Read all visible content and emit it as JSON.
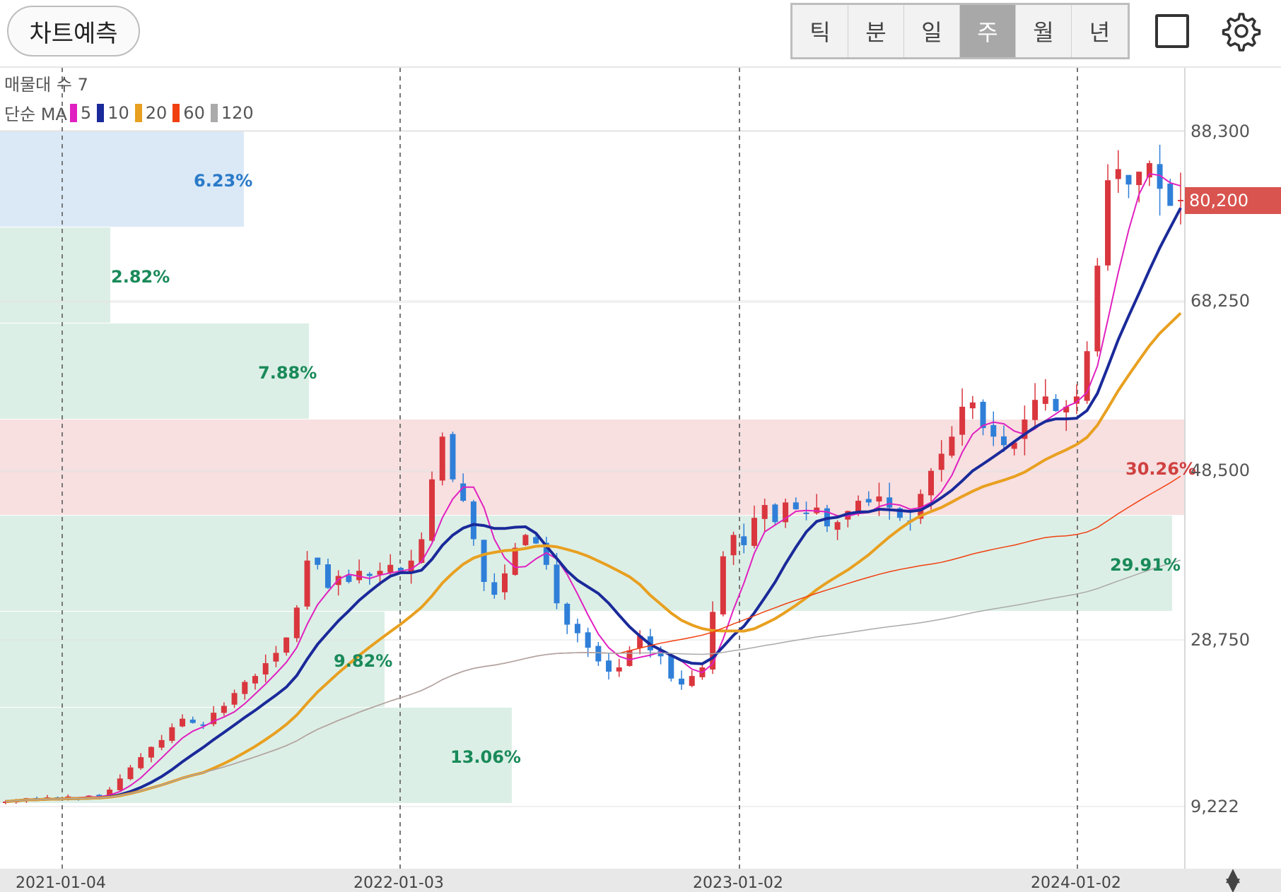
{
  "toolbar": {
    "predict_label": "차트예측",
    "periods": [
      "틱",
      "분",
      "일",
      "주",
      "월",
      "년"
    ],
    "active_period": "주",
    "layout_icon": "square-icon",
    "settings_icon": "gear-icon"
  },
  "legend": {
    "volume_profile": "매물대 수 7",
    "ma_prefix": "단순 MA",
    "ma": [
      {
        "period": "5",
        "color": "#e020c0"
      },
      {
        "period": "10",
        "color": "#1a2a9a"
      },
      {
        "period": "20",
        "color": "#e8a020"
      },
      {
        "period": "60",
        "color": "#f04010"
      },
      {
        "period": "120",
        "color": "#aaaaaa"
      }
    ]
  },
  "price_axis": {
    "labels": [
      "88,300",
      "68,250",
      "48,500",
      "28,750",
      "9,222"
    ],
    "last_price": "80,200"
  },
  "x_axis": {
    "labels": [
      "2021-01-04",
      "2022-01-03",
      "2023-01-02",
      "2024-01-02"
    ]
  },
  "volume_profile": [
    {
      "pct": "6.23%",
      "color": "#dbe9f7",
      "text_color": "#2a7ac8"
    },
    {
      "pct": "2.82%",
      "color": "#dcefe6",
      "text_color": "#1a8a5a"
    },
    {
      "pct": "7.88%",
      "color": "#dcefe6",
      "text_color": "#1a8a5a"
    },
    {
      "pct": "30.26%",
      "color": "#f8dfe0",
      "text_color": "#d04040"
    },
    {
      "pct": "29.91%",
      "color": "#dcefe6",
      "text_color": "#1a8a5a"
    },
    {
      "pct": "9.82%",
      "color": "#dcefe6",
      "text_color": "#1a8a5a"
    },
    {
      "pct": "13.06%",
      "color": "#dcefe6",
      "text_color": "#1a8a5a"
    }
  ],
  "chart_data": {
    "type": "candlestick",
    "ylim": [
      9222,
      88300
    ],
    "series_close_approx": [
      9800,
      10000,
      10200,
      10100,
      10300,
      10200,
      10400,
      10300,
      10500,
      10400,
      11200,
      12500,
      13800,
      15000,
      16200,
      17000,
      18500,
      19500,
      19000,
      18800,
      20200,
      21000,
      22500,
      23800,
      24500,
      26000,
      27200,
      29000,
      32500,
      38000,
      37500,
      34800,
      36200,
      35500,
      36800,
      36200,
      36800,
      37500,
      36500,
      38000,
      40500,
      47500,
      52500,
      47500,
      45000,
      40500,
      35500,
      34000,
      36500,
      39500,
      41000,
      40000,
      37500,
      33000,
      30500,
      29500,
      27800,
      26200,
      25000,
      25500,
      27500,
      29200,
      27500,
      26800,
      24200,
      23500,
      24500,
      25500,
      32000,
      38500,
      41000,
      39800,
      43000,
      44500,
      42500,
      44800,
      44000,
      43500,
      44200,
      42000,
      42500,
      43800,
      45000,
      44800,
      45500,
      44200,
      43000,
      42500,
      45800,
      48500,
      50500,
      52500,
      56000,
      56500,
      53500,
      52500,
      51500,
      51800,
      54500,
      56800,
      57200,
      55500,
      56000,
      57200,
      62500,
      72500,
      82500,
      83800,
      82000,
      83500,
      84500,
      81500,
      79500,
      80200
    ]
  }
}
